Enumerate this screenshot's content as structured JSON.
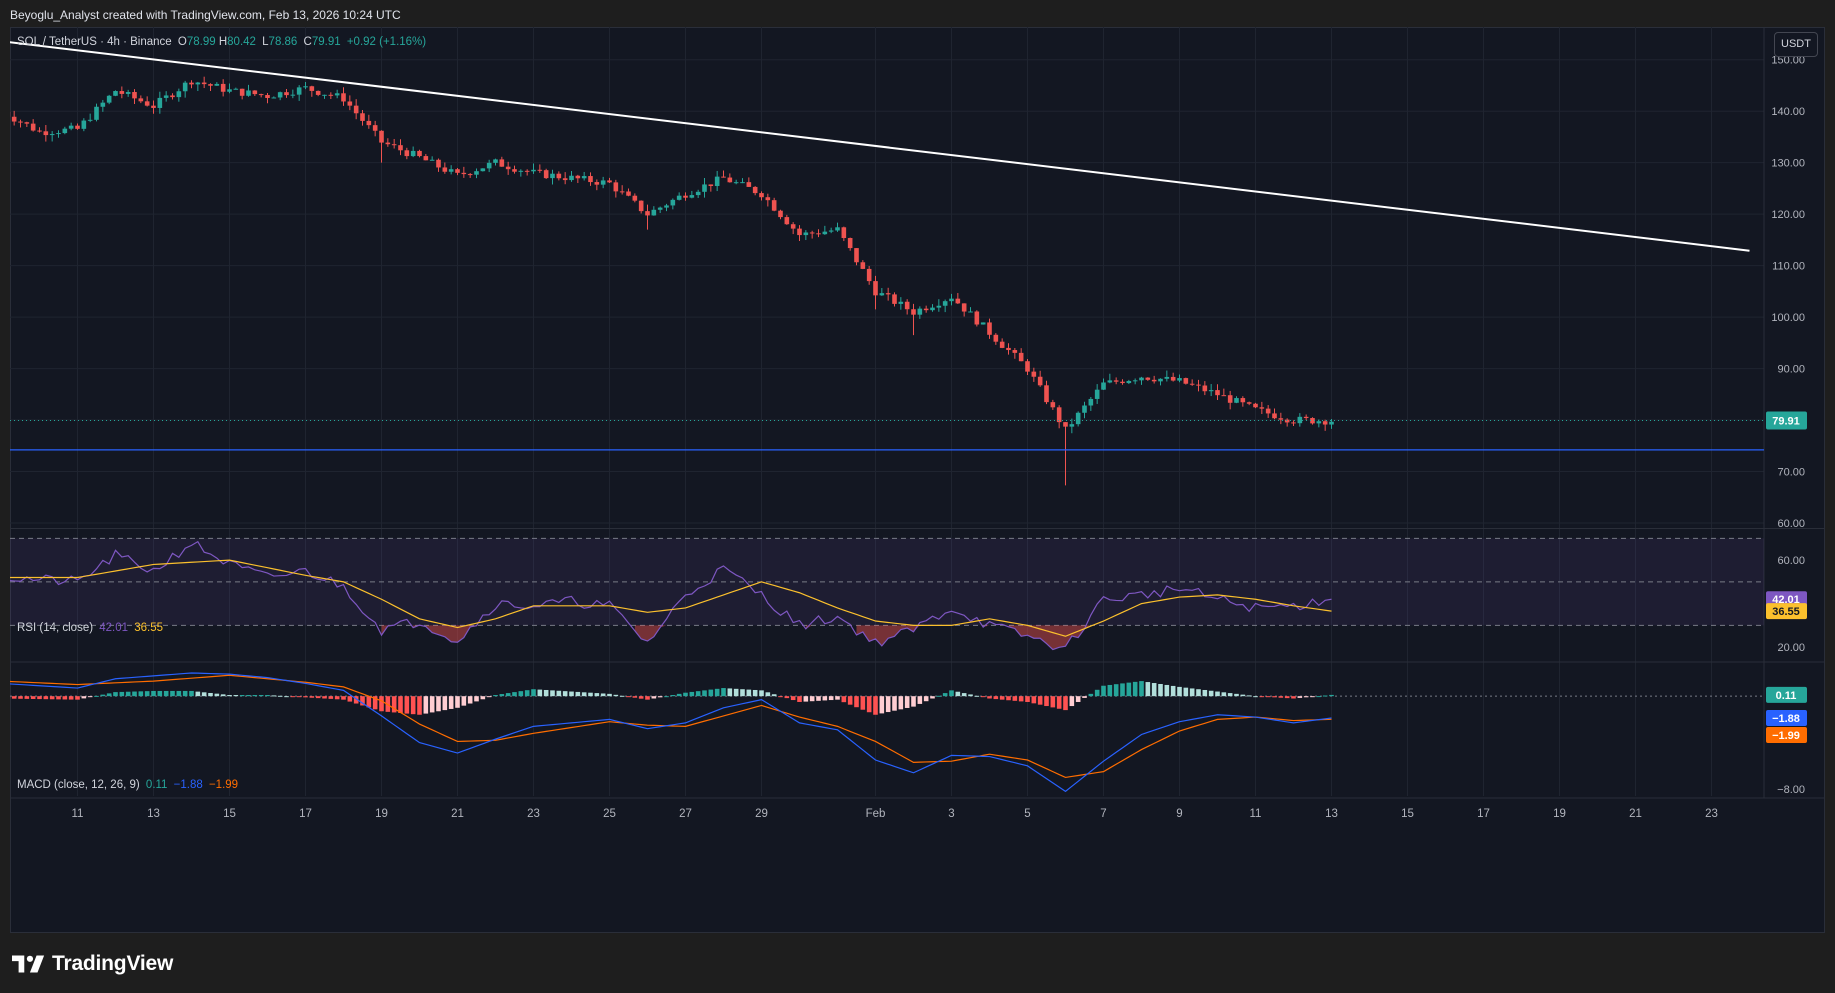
{
  "header": {
    "text": "Beyoglu_Analyst created with TradingView.com, Feb 13, 2026 10:24 UTC"
  },
  "symbol": {
    "name": "SOL / TetherUS · 4h · Binance",
    "o_label": "O",
    "o": "78.99",
    "h_label": "H",
    "h": "80.42",
    "l_label": "L",
    "l": "78.86",
    "c_label": "C",
    "c": "79.91",
    "change": "+0.92 (+1.16%)"
  },
  "currency": "USDT",
  "footer": {
    "brand": "TradingView"
  },
  "colors": {
    "bull": "#26a69a",
    "bear": "#ef5350",
    "rsi": "#7e57c2",
    "rsi_ma": "#fbc02d",
    "macd": "#2962ff",
    "signal": "#ff6d00",
    "support": "#2962ff",
    "trendline": "#ffffff"
  },
  "chart_data": [
    {
      "type": "candlestick",
      "title": "SOL / TetherUS · 4h · Binance",
      "ylim": [
        60,
        155
      ],
      "y_ticks": [
        "150.00",
        "140.00",
        "130.00",
        "120.00",
        "110.00",
        "100.00",
        "90.00",
        "80.00",
        "70.00",
        "60.00"
      ],
      "x_ticks": [
        "11",
        "13",
        "15",
        "17",
        "19",
        "21",
        "23",
        "25",
        "27",
        "29",
        "Feb",
        "3",
        "5",
        "7",
        "9",
        "11",
        "13",
        "15",
        "17",
        "19",
        "21",
        "23"
      ],
      "last_price": "79.91",
      "support_level": 74.2,
      "trendline": {
        "start": {
          "date": "Jan 9",
          "price": 153.6
        },
        "end": {
          "date": "Feb 24",
          "price": 112.9
        }
      },
      "anchors": [
        {
          "date": "Jan 9",
          "price": 140
        },
        {
          "date": "Jan 10",
          "price": 136
        },
        {
          "date": "Jan 11",
          "price": 136.5
        },
        {
          "date": "Jan 12",
          "price": 144
        },
        {
          "date": "Jan 13",
          "price": 141
        },
        {
          "date": "Jan 14",
          "price": 146
        },
        {
          "date": "Jan 15",
          "price": 144
        },
        {
          "date": "Jan 16",
          "price": 143
        },
        {
          "date": "Jan 17",
          "price": 144.5
        },
        {
          "date": "Jan 18",
          "price": 142.5
        },
        {
          "date": "Jan 19",
          "price": 134
        },
        {
          "date": "Jan 20",
          "price": 131
        },
        {
          "date": "Jan 21",
          "price": 127.5
        },
        {
          "date": "Jan 22",
          "price": 130
        },
        {
          "date": "Jan 23",
          "price": 128
        },
        {
          "date": "Jan 24",
          "price": 127
        },
        {
          "date": "Jan 25",
          "price": 126
        },
        {
          "date": "Jan 26",
          "price": 120
        },
        {
          "date": "Jan 27",
          "price": 124
        },
        {
          "date": "Jan 28",
          "price": 127
        },
        {
          "date": "Jan 29",
          "price": 124
        },
        {
          "date": "Jan 30",
          "price": 116
        },
        {
          "date": "Jan 31",
          "price": 117
        },
        {
          "date": "Feb 1",
          "price": 105
        },
        {
          "date": "Feb 2",
          "price": 101
        },
        {
          "date": "Feb 3",
          "price": 104
        },
        {
          "date": "Feb 4",
          "price": 97
        },
        {
          "date": "Feb 5",
          "price": 90
        },
        {
          "date": "Feb 6",
          "price": 78
        },
        {
          "date": "Feb 7",
          "price": 87
        },
        {
          "date": "Feb 8",
          "price": 88.5
        },
        {
          "date": "Feb 9",
          "price": 87.5
        },
        {
          "date": "Feb 10",
          "price": 85
        },
        {
          "date": "Feb 11",
          "price": 82
        },
        {
          "date": "Feb 12",
          "price": 80
        },
        {
          "date": "Feb 13",
          "price": 79.91
        }
      ],
      "spikes": [
        {
          "date": "Jan 19",
          "low": 130
        },
        {
          "date": "Jan 26",
          "low": 117
        },
        {
          "date": "Feb 1",
          "low": 101.5
        },
        {
          "date": "Feb 2",
          "low": 96.5
        },
        {
          "date": "Feb 6",
          "low": 67.3
        }
      ]
    },
    {
      "type": "line",
      "title": "RSI (14, close)",
      "series": [
        {
          "name": "RSI",
          "value": "42.01"
        },
        {
          "name": "RSI-based MA",
          "value": "36.55"
        }
      ],
      "y_ticks": [
        "60.00",
        "20.00"
      ],
      "bands": [
        70,
        50,
        30
      ],
      "ylim": [
        15,
        72
      ],
      "rsi_anchors": [
        {
          "date": "Jan 9",
          "v": 52
        },
        {
          "date": "Jan 11",
          "v": 50
        },
        {
          "date": "Jan 12",
          "v": 62
        },
        {
          "date": "Jan 13",
          "v": 55
        },
        {
          "date": "Jan 14",
          "v": 68
        },
        {
          "date": "Jan 15",
          "v": 58
        },
        {
          "date": "Jan 16",
          "v": 52
        },
        {
          "date": "Jan 17",
          "v": 55
        },
        {
          "date": "Jan 18",
          "v": 48
        },
        {
          "date": "Jan 19",
          "v": 28
        },
        {
          "date": "Jan 20",
          "v": 32
        },
        {
          "date": "Jan 21",
          "v": 23
        },
        {
          "date": "Jan 22",
          "v": 40
        },
        {
          "date": "Jan 23",
          "v": 39
        },
        {
          "date": "Jan 24",
          "v": 41
        },
        {
          "date": "Jan 25",
          "v": 39
        },
        {
          "date": "Jan 26",
          "v": 22
        },
        {
          "date": "Jan 27",
          "v": 44
        },
        {
          "date": "Jan 28",
          "v": 56
        },
        {
          "date": "Jan 29",
          "v": 44
        },
        {
          "date": "Jan 30",
          "v": 30
        },
        {
          "date": "Jan 31",
          "v": 34
        },
        {
          "date": "Feb 1",
          "v": 22
        },
        {
          "date": "Feb 2",
          "v": 28
        },
        {
          "date": "Feb 3",
          "v": 38
        },
        {
          "date": "Feb 4",
          "v": 30
        },
        {
          "date": "Feb 5",
          "v": 25
        },
        {
          "date": "Feb 6",
          "v": 19
        },
        {
          "date": "Feb 7",
          "v": 42
        },
        {
          "date": "Feb 8",
          "v": 44
        },
        {
          "date": "Feb 9",
          "v": 47
        },
        {
          "date": "Feb 10",
          "v": 42
        },
        {
          "date": "Feb 11",
          "v": 38
        },
        {
          "date": "Feb 12",
          "v": 39
        },
        {
          "date": "Feb 13",
          "v": 42.01
        }
      ],
      "ma_anchors": [
        {
          "date": "Jan 9",
          "v": 52
        },
        {
          "date": "Jan 11",
          "v": 52
        },
        {
          "date": "Jan 13",
          "v": 58
        },
        {
          "date": "Jan 15",
          "v": 60
        },
        {
          "date": "Jan 17",
          "v": 53
        },
        {
          "date": "Jan 18",
          "v": 50
        },
        {
          "date": "Jan 19",
          "v": 42
        },
        {
          "date": "Jan 20",
          "v": 33
        },
        {
          "date": "Jan 21",
          "v": 29
        },
        {
          "date": "Jan 22",
          "v": 33
        },
        {
          "date": "Jan 23",
          "v": 39
        },
        {
          "date": "Jan 25",
          "v": 39
        },
        {
          "date": "Jan 26",
          "v": 36
        },
        {
          "date": "Jan 27",
          "v": 38
        },
        {
          "date": "Jan 28",
          "v": 44
        },
        {
          "date": "Jan 29",
          "v": 50
        },
        {
          "date": "Jan 30",
          "v": 45
        },
        {
          "date": "Jan 31",
          "v": 38
        },
        {
          "date": "Feb 1",
          "v": 32
        },
        {
          "date": "Feb 2",
          "v": 30
        },
        {
          "date": "Feb 3",
          "v": 30
        },
        {
          "date": "Feb 4",
          "v": 33
        },
        {
          "date": "Feb 5",
          "v": 30
        },
        {
          "date": "Feb 6",
          "v": 25
        },
        {
          "date": "Feb 7",
          "v": 32
        },
        {
          "date": "Feb 8",
          "v": 40
        },
        {
          "date": "Feb 9",
          "v": 43
        },
        {
          "date": "Feb 10",
          "v": 44
        },
        {
          "date": "Feb 11",
          "v": 42
        },
        {
          "date": "Feb 12",
          "v": 39
        },
        {
          "date": "Feb 13",
          "v": 36.55
        }
      ]
    },
    {
      "type": "bar",
      "title": "MACD (close, 12, 26, 9)",
      "series": [
        {
          "name": "Histogram",
          "value": "0.11"
        },
        {
          "name": "MACD",
          "value": "−1.88"
        },
        {
          "name": "Signal",
          "value": "−1.99"
        }
      ],
      "y_ticks": [
        "−8.00"
      ],
      "ylim": [
        -8.6,
        2.6
      ],
      "macd_anchors": [
        {
          "date": "Jan 9",
          "v": 1.1
        },
        {
          "date": "Jan 11",
          "v": 0.7
        },
        {
          "date": "Jan 12",
          "v": 1.5
        },
        {
          "date": "Jan 14",
          "v": 2.0
        },
        {
          "date": "Jan 15",
          "v": 1.9
        },
        {
          "date": "Jan 16",
          "v": 1.6
        },
        {
          "date": "Jan 17",
          "v": 1.1
        },
        {
          "date": "Jan 18",
          "v": 0.5
        },
        {
          "date": "Jan 19",
          "v": -1.7
        },
        {
          "date": "Jan 20",
          "v": -4.0
        },
        {
          "date": "Jan 21",
          "v": -4.9
        },
        {
          "date": "Jan 22",
          "v": -3.7
        },
        {
          "date": "Jan 23",
          "v": -2.6
        },
        {
          "date": "Jan 25",
          "v": -2.0
        },
        {
          "date": "Jan 26",
          "v": -2.8
        },
        {
          "date": "Jan 27",
          "v": -2.3
        },
        {
          "date": "Jan 28",
          "v": -1.0
        },
        {
          "date": "Jan 29",
          "v": -0.3
        },
        {
          "date": "Jan 30",
          "v": -2.3
        },
        {
          "date": "Jan 31",
          "v": -2.9
        },
        {
          "date": "Feb 1",
          "v": -5.5
        },
        {
          "date": "Feb 2",
          "v": -6.6
        },
        {
          "date": "Feb 3",
          "v": -5.1
        },
        {
          "date": "Feb 4",
          "v": -5.2
        },
        {
          "date": "Feb 5",
          "v": -6.0
        },
        {
          "date": "Feb 6",
          "v": -8.2
        },
        {
          "date": "Feb 7",
          "v": -5.6
        },
        {
          "date": "Feb 8",
          "v": -3.3
        },
        {
          "date": "Feb 9",
          "v": -2.2
        },
        {
          "date": "Feb 10",
          "v": -1.6
        },
        {
          "date": "Feb 11",
          "v": -1.8
        },
        {
          "date": "Feb 12",
          "v": -2.3
        },
        {
          "date": "Feb 13",
          "v": -1.88
        }
      ],
      "signal_anchors": [
        {
          "date": "Jan 9",
          "v": 1.3
        },
        {
          "date": "Jan 11",
          "v": 1.0
        },
        {
          "date": "Jan 13",
          "v": 1.3
        },
        {
          "date": "Jan 15",
          "v": 1.8
        },
        {
          "date": "Jan 17",
          "v": 1.2
        },
        {
          "date": "Jan 18",
          "v": 0.8
        },
        {
          "date": "Jan 19",
          "v": -0.4
        },
        {
          "date": "Jan 20",
          "v": -2.4
        },
        {
          "date": "Jan 21",
          "v": -3.9
        },
        {
          "date": "Jan 22",
          "v": -3.8
        },
        {
          "date": "Jan 23",
          "v": -3.2
        },
        {
          "date": "Jan 25",
          "v": -2.2
        },
        {
          "date": "Jan 26",
          "v": -2.5
        },
        {
          "date": "Jan 27",
          "v": -2.6
        },
        {
          "date": "Jan 28",
          "v": -1.7
        },
        {
          "date": "Jan 29",
          "v": -0.8
        },
        {
          "date": "Jan 30",
          "v": -1.8
        },
        {
          "date": "Jan 31",
          "v": -2.6
        },
        {
          "date": "Feb 1",
          "v": -3.9
        },
        {
          "date": "Feb 2",
          "v": -5.7
        },
        {
          "date": "Feb 3",
          "v": -5.6
        },
        {
          "date": "Feb 4",
          "v": -5.0
        },
        {
          "date": "Feb 5",
          "v": -5.5
        },
        {
          "date": "Feb 6",
          "v": -7.0
        },
        {
          "date": "Feb 7",
          "v": -6.5
        },
        {
          "date": "Feb 8",
          "v": -4.6
        },
        {
          "date": "Feb 9",
          "v": -3.0
        },
        {
          "date": "Feb 10",
          "v": -2.0
        },
        {
          "date": "Feb 11",
          "v": -1.8
        },
        {
          "date": "Feb 12",
          "v": -2.1
        },
        {
          "date": "Feb 13",
          "v": -1.99
        }
      ]
    }
  ]
}
